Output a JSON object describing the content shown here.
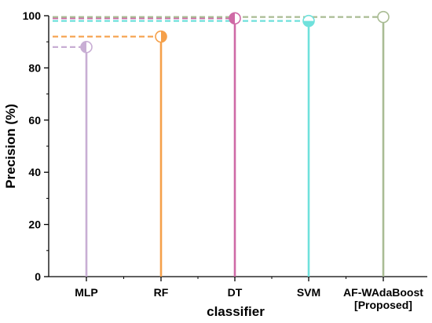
{
  "chart_data": {
    "type": "lollipop",
    "xlabel": "classifier",
    "ylabel": "Precision (%)",
    "ylim": [
      0,
      100
    ],
    "yticks": [
      "0",
      "20",
      "40",
      "60",
      "80",
      "100"
    ],
    "grid": false,
    "legend": "none",
    "categories": [
      [
        "MLP"
      ],
      [
        "RF"
      ],
      [
        "DT"
      ],
      [
        "SVM"
      ],
      [
        "AF-WAdaBoost",
        "[Proposed]"
      ]
    ],
    "values": [
      88,
      92,
      99,
      98,
      99.5
    ],
    "colors": [
      "#c8aed4",
      "#f5a04a",
      "#cf6aa6",
      "#6fe1dc",
      "#a9bc94"
    ],
    "marker_fill": [
      "left-half",
      "right-half",
      "left-half",
      "bottom-half",
      "none"
    ]
  }
}
